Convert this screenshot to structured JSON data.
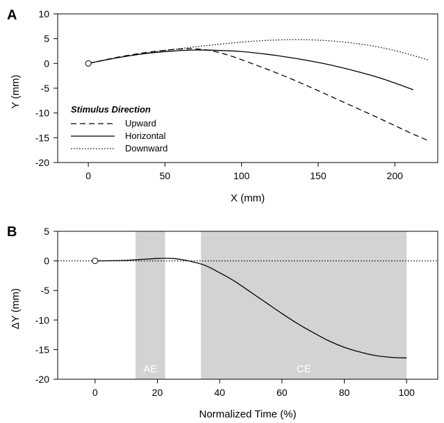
{
  "chart_data": [
    {
      "panel_label": "A",
      "type": "line",
      "xlabel": "X (mm)",
      "ylabel": "Y (mm)",
      "xlim": [
        -20,
        228
      ],
      "ylim": [
        -20,
        10
      ],
      "xticks": [
        0,
        50,
        100,
        150,
        200
      ],
      "yticks": [
        10,
        5,
        0,
        -5,
        -10,
        -15,
        -20
      ],
      "legend": {
        "title": "Stimulus Direction",
        "position": "lower-left"
      },
      "start_marker": {
        "x": 0,
        "y": 0
      },
      "series": [
        {
          "name": "Upward",
          "style": "dashed",
          "points": [
            [
              0,
              0
            ],
            [
              20,
              1.3
            ],
            [
              40,
              2.3
            ],
            [
              60,
              2.9
            ],
            [
              75,
              2.8
            ],
            [
              90,
              1.8
            ],
            [
              110,
              -0.4
            ],
            [
              130,
              -2.8
            ],
            [
              150,
              -5.5
            ],
            [
              170,
              -8.3
            ],
            [
              190,
              -11.1
            ],
            [
              210,
              -14
            ],
            [
              222,
              -15.6
            ]
          ]
        },
        {
          "name": "Horizontal",
          "style": "solid",
          "points": [
            [
              0,
              0
            ],
            [
              20,
              1.2
            ],
            [
              40,
              2.1
            ],
            [
              60,
              2.6
            ],
            [
              75,
              2.7
            ],
            [
              100,
              2.4
            ],
            [
              125,
              1.5
            ],
            [
              150,
              0.2
            ],
            [
              170,
              -1.2
            ],
            [
              190,
              -2.9
            ],
            [
              212,
              -5.3
            ]
          ]
        },
        {
          "name": "Downward",
          "style": "dotted",
          "points": [
            [
              0,
              0
            ],
            [
              20,
              1.2
            ],
            [
              40,
              2.2
            ],
            [
              60,
              3
            ],
            [
              80,
              3.7
            ],
            [
              100,
              4.3
            ],
            [
              120,
              4.7
            ],
            [
              140,
              4.8
            ],
            [
              160,
              4.5
            ],
            [
              180,
              3.8
            ],
            [
              200,
              2.6
            ],
            [
              222,
              0.7
            ]
          ]
        }
      ]
    },
    {
      "panel_label": "B",
      "type": "line",
      "xlabel": "Normalized Time (%)",
      "ylabel": "ΔY (mm)",
      "xlim": [
        -12,
        110
      ],
      "ylim": [
        -20,
        5
      ],
      "xticks": [
        0,
        20,
        40,
        60,
        80,
        100
      ],
      "yticks": [
        5,
        0,
        -5,
        -10,
        -15,
        -20
      ],
      "reference_line": {
        "y": 0,
        "style": "dotted"
      },
      "start_marker": {
        "x": 0,
        "y": 0
      },
      "bands": [
        {
          "label": "AE",
          "x0": 13,
          "x1": 22.5,
          "color": "#d3d3d3"
        },
        {
          "label": "CE",
          "x0": 34,
          "x1": 100,
          "color": "#d3d3d3"
        }
      ],
      "series": [
        {
          "style": "solid",
          "points": [
            [
              0,
              0
            ],
            [
              10,
              0.1
            ],
            [
              20,
              0.4
            ],
            [
              25,
              0.4
            ],
            [
              30,
              0
            ],
            [
              35,
              -0.7
            ],
            [
              40,
              -2
            ],
            [
              45,
              -3.5
            ],
            [
              50,
              -5.3
            ],
            [
              55,
              -7.1
            ],
            [
              60,
              -8.9
            ],
            [
              65,
              -10.6
            ],
            [
              70,
              -12.1
            ],
            [
              75,
              -13.5
            ],
            [
              80,
              -14.6
            ],
            [
              85,
              -15.4
            ],
            [
              90,
              -16
            ],
            [
              95,
              -16.3
            ],
            [
              100,
              -16.4
            ]
          ]
        }
      ]
    }
  ]
}
